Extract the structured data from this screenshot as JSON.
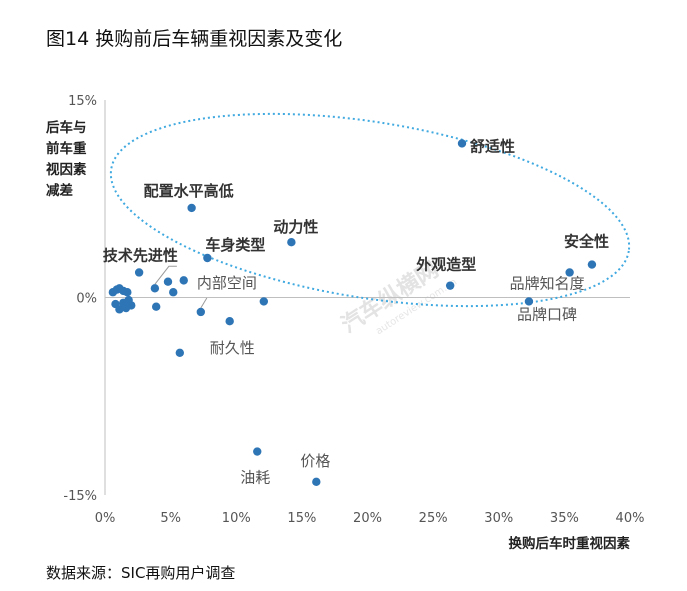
{
  "title": "图14  换购前后车辆重视因素及变化",
  "source": "数据来源：SIC再购用户调查",
  "colors": {
    "point": "#2e75b6",
    "ellipse": "#3fa9e0",
    "axis": "#bfbfbf"
  },
  "chart_data": {
    "type": "scatter",
    "xlabel": "换购后车时重视因素",
    "ylabel_lines": [
      "后车与",
      "前车重",
      "视因素",
      "减差"
    ],
    "xlim": [
      0,
      40
    ],
    "ylim": [
      -15,
      15
    ],
    "x_ticks": [
      "0%",
      "5%",
      "10%",
      "15%",
      "20%",
      "25%",
      "30%",
      "35%",
      "40%"
    ],
    "y_ticks": [
      "15%",
      "0%",
      "-15%"
    ],
    "points": [
      {
        "x": 27.2,
        "y": 11.7,
        "label": "舒适性",
        "bold": true
      },
      {
        "x": 37.1,
        "y": 2.5,
        "label": "安全性",
        "bold": true
      },
      {
        "x": 35.4,
        "y": 1.9,
        "label": "品牌知名度",
        "bold": false
      },
      {
        "x": 32.3,
        "y": -0.3,
        "label": "品牌口碑",
        "bold": false
      },
      {
        "x": 26.3,
        "y": 0.9,
        "label": "外观造型",
        "bold": true
      },
      {
        "x": 14.2,
        "y": 4.2,
        "label": "动力性",
        "bold": true
      },
      {
        "x": 6.6,
        "y": 6.8,
        "label": "配置水平高低",
        "bold": true
      },
      {
        "x": 7.8,
        "y": 3.0,
        "label": "车身类型",
        "bold": true
      },
      {
        "x": 3.8,
        "y": 0.7,
        "label": "技术先进性",
        "bold": true
      },
      {
        "x": 7.3,
        "y": -1.1,
        "label": "内部空间",
        "bold": false
      },
      {
        "x": 9.5,
        "y": -1.8,
        "label": "耐久性",
        "bold": false
      },
      {
        "x": 16.1,
        "y": -14.0,
        "label": "价格",
        "bold": false
      },
      {
        "x": 11.6,
        "y": -11.7,
        "label": "油耗",
        "bold": false
      },
      {
        "x": 12.1,
        "y": -0.3,
        "label": "",
        "bold": false
      },
      {
        "x": 5.7,
        "y": -4.2,
        "label": "",
        "bold": false
      },
      {
        "x": 2.6,
        "y": 1.9,
        "label": "",
        "bold": false
      },
      {
        "x": 4.8,
        "y": 1.2,
        "label": "",
        "bold": false
      },
      {
        "x": 5.2,
        "y": 0.4,
        "label": "",
        "bold": false
      },
      {
        "x": 6.0,
        "y": 1.3,
        "label": "",
        "bold": false
      },
      {
        "x": 3.9,
        "y": -0.7,
        "label": "",
        "bold": false
      },
      {
        "x": 0.6,
        "y": 0.4,
        "label": "",
        "bold": false
      },
      {
        "x": 0.9,
        "y": 0.6,
        "label": "",
        "bold": false
      },
      {
        "x": 1.1,
        "y": 0.7,
        "label": "",
        "bold": false
      },
      {
        "x": 1.4,
        "y": 0.5,
        "label": "",
        "bold": false
      },
      {
        "x": 1.7,
        "y": 0.4,
        "label": "",
        "bold": false
      },
      {
        "x": 0.8,
        "y": -0.5,
        "label": "",
        "bold": false
      },
      {
        "x": 1.1,
        "y": -0.9,
        "label": "",
        "bold": false
      },
      {
        "x": 1.4,
        "y": -0.4,
        "label": "",
        "bold": false
      },
      {
        "x": 1.6,
        "y": -0.8,
        "label": "",
        "bold": false
      },
      {
        "x": 1.8,
        "y": -0.2,
        "label": "",
        "bold": false
      },
      {
        "x": 2.0,
        "y": -0.6,
        "label": "",
        "bold": false
      }
    ],
    "grid": false,
    "legend": "none"
  },
  "watermark": {
    "text": "汽车纵横网",
    "url": "autoreview.com.cn"
  }
}
